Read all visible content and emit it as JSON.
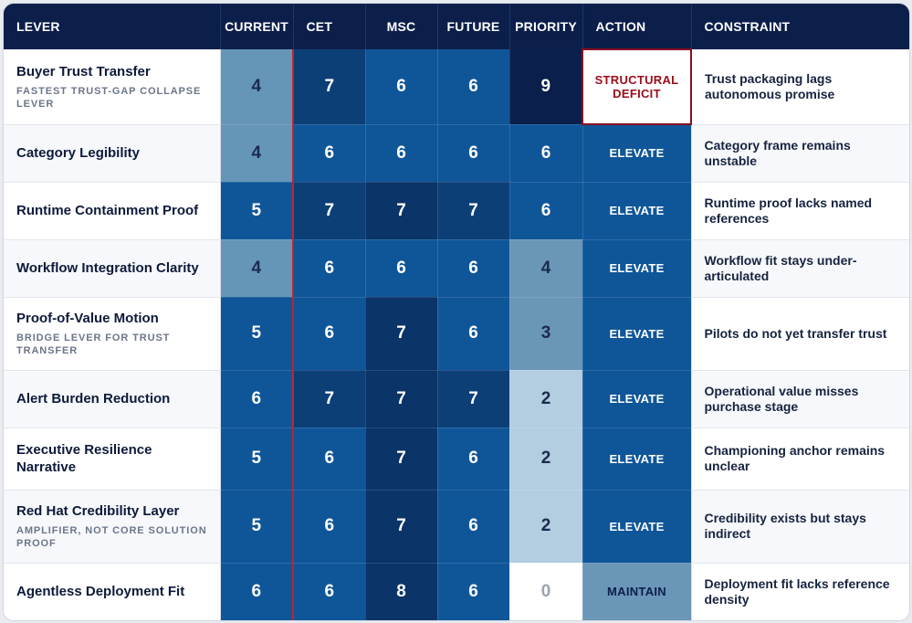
{
  "headers": {
    "lever": "LEVER",
    "current": "CURRENT",
    "cet": "CET",
    "msc": "MSC",
    "future": "FUTURE",
    "priority": "PRIORITY",
    "action": "ACTION",
    "constraint": "CONSTRAINT"
  },
  "colors": {
    "header_bg": "#0c1f4b",
    "accent_red": "#c6202c",
    "deficit_red": "#9b0d1a"
  },
  "rows": [
    {
      "name": "Buyer Trust Transfer",
      "sub": "FASTEST TRUST-GAP COLLAPSE LEVER",
      "current": "4",
      "cet": "7",
      "msc": "6",
      "future": "6",
      "priority": "9",
      "action": "STRUCTURAL DEFICIT",
      "constraint": "Trust packaging lags autonomous promise"
    },
    {
      "name": "Category Legibility",
      "sub": "",
      "current": "4",
      "cet": "6",
      "msc": "6",
      "future": "6",
      "priority": "6",
      "action": "ELEVATE",
      "constraint": "Category frame remains unstable"
    },
    {
      "name": "Runtime Containment Proof",
      "sub": "",
      "current": "5",
      "cet": "7",
      "msc": "7",
      "future": "7",
      "priority": "6",
      "action": "ELEVATE",
      "constraint": "Runtime proof lacks named references"
    },
    {
      "name": "Workflow Integration Clarity",
      "sub": "",
      "current": "4",
      "cet": "6",
      "msc": "6",
      "future": "6",
      "priority": "4",
      "action": "ELEVATE",
      "constraint": "Workflow fit stays under-articulated"
    },
    {
      "name": "Proof-of-Value Motion",
      "sub": "BRIDGE LEVER FOR TRUST TRANSFER",
      "current": "5",
      "cet": "6",
      "msc": "7",
      "future": "6",
      "priority": "3",
      "action": "ELEVATE",
      "constraint": "Pilots do not yet transfer trust"
    },
    {
      "name": "Alert Burden Reduction",
      "sub": "",
      "current": "6",
      "cet": "7",
      "msc": "7",
      "future": "7",
      "priority": "2",
      "action": "ELEVATE",
      "constraint": "Operational value misses purchase stage"
    },
    {
      "name": "Executive Resilience Narrative",
      "sub": "",
      "current": "5",
      "cet": "6",
      "msc": "7",
      "future": "6",
      "priority": "2",
      "action": "ELEVATE",
      "constraint": "Championing anchor remains unclear"
    },
    {
      "name": "Red Hat Credibility Layer",
      "sub": "AMPLIFIER, NOT CORE SOLUTION PROOF",
      "current": "5",
      "cet": "6",
      "msc": "7",
      "future": "6",
      "priority": "2",
      "action": "ELEVATE",
      "constraint": "Credibility exists but stays indirect"
    },
    {
      "name": "Agentless Deployment Fit",
      "sub": "",
      "current": "6",
      "cet": "6",
      "msc": "8",
      "future": "6",
      "priority": "0",
      "action": "MAINTAIN",
      "constraint": "Deployment fit lacks reference density"
    }
  ]
}
